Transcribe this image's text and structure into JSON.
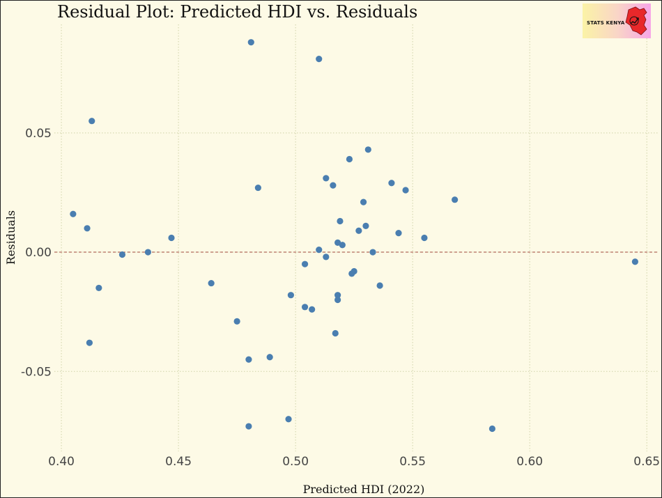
{
  "chart_data": {
    "type": "scatter",
    "title": "Residual Plot: Predicted HDI vs. Residuals",
    "xlabel": "Predicted HDI (2022)",
    "ylabel": "Residuals",
    "xlim": [
      0.397,
      0.655
    ],
    "ylim": [
      -0.0835,
      0.0955
    ],
    "x_ticks": [
      0.4,
      0.45,
      0.5,
      0.55,
      0.6,
      0.65
    ],
    "x_tick_labels": [
      "0.40",
      "0.45",
      "0.50",
      "0.55",
      "0.60",
      "0.65"
    ],
    "y_ticks": [
      -0.05,
      0.0,
      0.05
    ],
    "y_tick_labels": [
      "-0.05",
      "0.00",
      "0.05"
    ],
    "reference_line": 0.0,
    "reference_line_color": "#a0453b",
    "point_color": "#4a7eb0",
    "grid": true,
    "points": [
      {
        "x": 0.481,
        "y": 0.088
      },
      {
        "x": 0.51,
        "y": 0.081
      },
      {
        "x": 0.413,
        "y": 0.055
      },
      {
        "x": 0.531,
        "y": 0.043
      },
      {
        "x": 0.523,
        "y": 0.039
      },
      {
        "x": 0.513,
        "y": 0.031
      },
      {
        "x": 0.484,
        "y": 0.027
      },
      {
        "x": 0.516,
        "y": 0.028
      },
      {
        "x": 0.541,
        "y": 0.029
      },
      {
        "x": 0.547,
        "y": 0.026
      },
      {
        "x": 0.568,
        "y": 0.022
      },
      {
        "x": 0.529,
        "y": 0.021
      },
      {
        "x": 0.405,
        "y": 0.016
      },
      {
        "x": 0.519,
        "y": 0.013
      },
      {
        "x": 0.411,
        "y": 0.01
      },
      {
        "x": 0.53,
        "y": 0.011
      },
      {
        "x": 0.527,
        "y": 0.009
      },
      {
        "x": 0.544,
        "y": 0.008
      },
      {
        "x": 0.555,
        "y": 0.006
      },
      {
        "x": 0.447,
        "y": 0.006
      },
      {
        "x": 0.518,
        "y": 0.004
      },
      {
        "x": 0.52,
        "y": 0.003
      },
      {
        "x": 0.51,
        "y": 0.001
      },
      {
        "x": 0.437,
        "y": 0.0
      },
      {
        "x": 0.533,
        "y": 0.0
      },
      {
        "x": 0.426,
        "y": -0.001
      },
      {
        "x": 0.513,
        "y": -0.002
      },
      {
        "x": 0.504,
        "y": -0.005
      },
      {
        "x": 0.645,
        "y": -0.004
      },
      {
        "x": 0.525,
        "y": -0.008
      },
      {
        "x": 0.524,
        "y": -0.009
      },
      {
        "x": 0.464,
        "y": -0.013
      },
      {
        "x": 0.536,
        "y": -0.014
      },
      {
        "x": 0.416,
        "y": -0.015
      },
      {
        "x": 0.498,
        "y": -0.018
      },
      {
        "x": 0.518,
        "y": -0.018
      },
      {
        "x": 0.518,
        "y": -0.02
      },
      {
        "x": 0.504,
        "y": -0.023
      },
      {
        "x": 0.507,
        "y": -0.024
      },
      {
        "x": 0.475,
        "y": -0.029
      },
      {
        "x": 0.517,
        "y": -0.034
      },
      {
        "x": 0.412,
        "y": -0.038
      },
      {
        "x": 0.489,
        "y": -0.044
      },
      {
        "x": 0.48,
        "y": -0.045
      },
      {
        "x": 0.497,
        "y": -0.07
      },
      {
        "x": 0.48,
        "y": -0.073
      },
      {
        "x": 0.584,
        "y": -0.074
      }
    ]
  },
  "logo": {
    "text": "STATS KENYA"
  }
}
